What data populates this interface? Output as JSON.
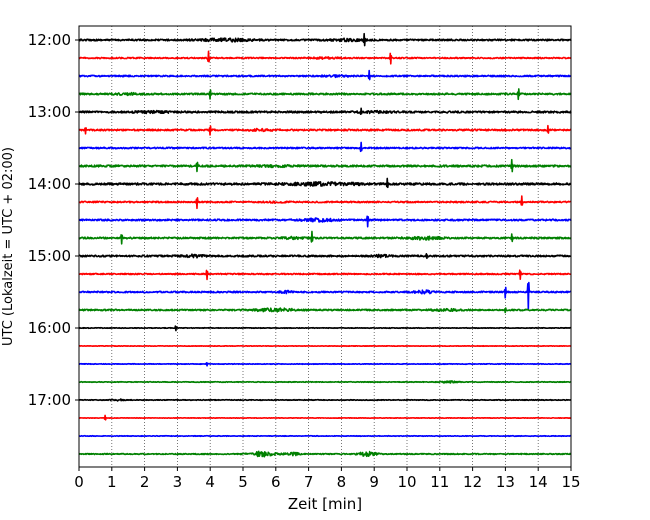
{
  "chart_data": {
    "type": "line",
    "xlabel": "Zeit  [min]",
    "ylabel": "UTC (Lokalzeit = UTC + 02:00)",
    "xlim": [
      0,
      15
    ],
    "x_ticks": [
      0,
      1,
      2,
      3,
      4,
      5,
      6,
      7,
      8,
      9,
      10,
      11,
      12,
      13,
      14,
      15
    ],
    "grid": "vertical dotted",
    "y_tick_labels": [
      "12:00",
      "13:00",
      "14:00",
      "15:00",
      "16:00",
      "17:00"
    ],
    "y_tick_rows": [
      0,
      4,
      8,
      12,
      16,
      20
    ],
    "row_interval_minutes": 15,
    "row_colors": [
      "#000000",
      "#ff0000",
      "#0000ff",
      "#008000"
    ],
    "rows": [
      {
        "start": "12:00",
        "color": "#000000",
        "noise": 0.8,
        "bursts": [
          [
            4.5,
            1.6,
            1.2
          ],
          [
            8.2,
            1.0,
            1.0
          ]
        ],
        "spikes": [
          [
            8.7,
            8
          ]
        ]
      },
      {
        "start": "12:15",
        "color": "#ff0000",
        "noise": 0.6,
        "bursts": [
          [
            7.5,
            0.8,
            0.6
          ]
        ],
        "spikes": [
          [
            3.95,
            7
          ],
          [
            9.5,
            7
          ]
        ]
      },
      {
        "start": "12:30",
        "color": "#0000ff",
        "noise": 0.7,
        "bursts": [
          [
            7.8,
            0.8,
            0.6
          ]
        ],
        "spikes": [
          [
            8.85,
            6
          ]
        ]
      },
      {
        "start": "12:45",
        "color": "#008000",
        "noise": 0.8,
        "bursts": [
          [
            1.5,
            0.8,
            0.7
          ]
        ],
        "spikes": [
          [
            4.0,
            6
          ],
          [
            13.4,
            7
          ]
        ]
      },
      {
        "start": "13:00",
        "color": "#000000",
        "noise": 0.9,
        "bursts": [
          [
            2.2,
            1.0,
            0.7
          ],
          [
            9.0,
            1.0,
            0.6
          ]
        ],
        "spikes": [
          [
            8.6,
            4
          ]
        ]
      },
      {
        "start": "13:15",
        "color": "#ff0000",
        "noise": 0.8,
        "bursts": [
          [
            5.5,
            0.8,
            0.7
          ]
        ],
        "spikes": [
          [
            4.0,
            6
          ],
          [
            14.3,
            5
          ],
          [
            0.2,
            4
          ]
        ]
      },
      {
        "start": "13:30",
        "color": "#0000ff",
        "noise": 0.7,
        "bursts": [],
        "spikes": [
          [
            8.6,
            6
          ]
        ]
      },
      {
        "start": "13:45",
        "color": "#008000",
        "noise": 0.9,
        "bursts": [
          [
            6.0,
            1.0,
            0.6
          ]
        ],
        "spikes": [
          [
            3.6,
            6
          ],
          [
            13.2,
            8
          ]
        ]
      },
      {
        "start": "14:00",
        "color": "#000000",
        "noise": 1.0,
        "bursts": [
          [
            7.5,
            2.2,
            1.2
          ]
        ],
        "spikes": [
          [
            9.4,
            6
          ]
        ]
      },
      {
        "start": "14:15",
        "color": "#ff0000",
        "noise": 0.7,
        "bursts": [
          [
            6.0,
            0.6,
            0.5
          ]
        ],
        "spikes": [
          [
            3.6,
            7
          ],
          [
            13.5,
            6
          ]
        ]
      },
      {
        "start": "14:30",
        "color": "#0000ff",
        "noise": 0.8,
        "bursts": [
          [
            7.3,
            1.0,
            1.2
          ]
        ],
        "spikes": [
          [
            8.8,
            7
          ]
        ]
      },
      {
        "start": "14:45",
        "color": "#008000",
        "noise": 0.8,
        "bursts": [
          [
            10.5,
            1.0,
            1.3
          ],
          [
            6.5,
            0.6,
            0.8
          ]
        ],
        "spikes": [
          [
            1.3,
            6
          ],
          [
            7.1,
            7
          ],
          [
            13.2,
            5
          ]
        ]
      },
      {
        "start": "15:00",
        "color": "#000000",
        "noise": 0.8,
        "bursts": [
          [
            3.5,
            0.7,
            1.2
          ],
          [
            9.2,
            0.5,
            1.0
          ]
        ],
        "spikes": [
          [
            10.6,
            3
          ]
        ]
      },
      {
        "start": "15:15",
        "color": "#ff0000",
        "noise": 0.6,
        "bursts": [],
        "spikes": [
          [
            3.9,
            6
          ],
          [
            13.45,
            6
          ]
        ]
      },
      {
        "start": "15:30",
        "color": "#0000ff",
        "noise": 0.7,
        "bursts": [
          [
            6.3,
            0.4,
            1.0
          ],
          [
            10.5,
            0.5,
            1.8
          ]
        ],
        "spikes": [
          [
            13.0,
            7
          ],
          [
            13.7,
            18
          ]
        ]
      },
      {
        "start": "15:45",
        "color": "#008000",
        "noise": 0.7,
        "bursts": [
          [
            6.0,
            1.2,
            1.5
          ],
          [
            11.2,
            0.8,
            0.8
          ]
        ],
        "spikes": [
          [
            13.0,
            3
          ]
        ]
      },
      {
        "start": "16:00",
        "color": "#000000",
        "noise": 0.3,
        "bursts": [],
        "spikes": [
          [
            2.95,
            3
          ]
        ]
      },
      {
        "start": "16:15",
        "color": "#ff0000",
        "noise": 0.25,
        "bursts": [],
        "spikes": []
      },
      {
        "start": "16:30",
        "color": "#0000ff",
        "noise": 0.3,
        "bursts": [],
        "spikes": [
          [
            3.9,
            2
          ]
        ]
      },
      {
        "start": "16:45",
        "color": "#008000",
        "noise": 0.35,
        "bursts": [
          [
            11.3,
            0.5,
            1.0
          ]
        ],
        "spikes": []
      },
      {
        "start": "17:00",
        "color": "#000000",
        "noise": 0.35,
        "bursts": [
          [
            1.2,
            0.4,
            0.7
          ]
        ],
        "spikes": []
      },
      {
        "start": "17:15",
        "color": "#ff0000",
        "noise": 0.25,
        "bursts": [],
        "spikes": [
          [
            0.8,
            3
          ]
        ]
      },
      {
        "start": "17:30",
        "color": "#0000ff",
        "noise": 0.3,
        "bursts": [],
        "spikes": []
      },
      {
        "start": "17:45",
        "color": "#008000",
        "noise": 0.5,
        "bursts": [
          [
            5.6,
            0.7,
            2.6
          ],
          [
            8.8,
            0.5,
            2.6
          ],
          [
            6.5,
            0.5,
            1.3
          ]
        ],
        "spikes": []
      }
    ]
  }
}
